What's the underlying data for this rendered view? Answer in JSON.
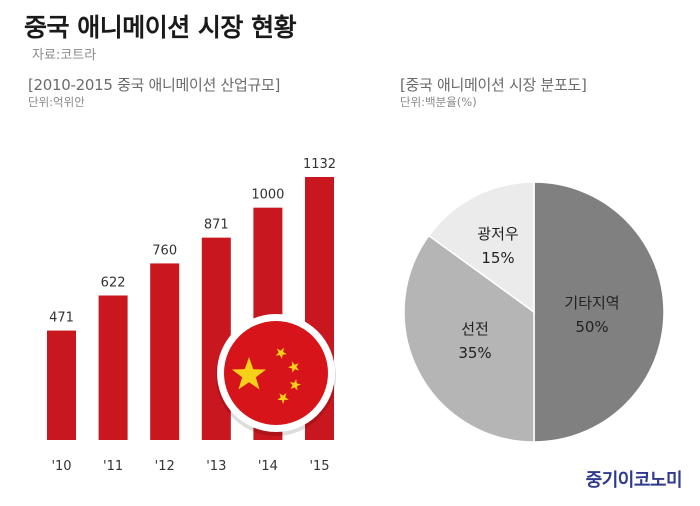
{
  "header": {
    "title": "중국 애니메이션 시장 현황",
    "source": "자료:코트라"
  },
  "colors": {
    "bar": "#c8171e",
    "flag_red": "#d7141a",
    "flag_star": "#f7d117",
    "pie_other": "#808080",
    "pie_shenzhen": "#b5b5b5",
    "pie_guangzhou": "#ebebeb",
    "brand": "#2f3a8f"
  },
  "chart_data": [
    {
      "type": "bar",
      "title": "[2010-2015 중국 애니메이션 산업규모]",
      "unit": "단위:억위안",
      "categories": [
        "'10",
        "'11",
        "'12",
        "'13",
        "'14",
        "'15"
      ],
      "values": [
        471,
        622,
        760,
        871,
        1000,
        1132
      ],
      "value_labels": [
        "471",
        "622",
        "760",
        "871",
        "1000",
        "1132"
      ],
      "ylim": [
        0,
        1132
      ],
      "grid": false,
      "decoration": "china-flag-circle"
    },
    {
      "type": "pie",
      "title": "[중국 애니메이션 시장 분포도]",
      "unit": "단위:백분율(%)",
      "slices": [
        {
          "label": "기타지역",
          "value": 50,
          "value_label": "50%",
          "color": "#808080"
        },
        {
          "label": "선전",
          "value": 35,
          "value_label": "35%",
          "color": "#b5b5b5"
        },
        {
          "label": "광저우",
          "value": 15,
          "value_label": "15%",
          "color": "#ebebeb"
        }
      ]
    }
  ],
  "brand": {
    "logo_text": "중기이코노미"
  }
}
